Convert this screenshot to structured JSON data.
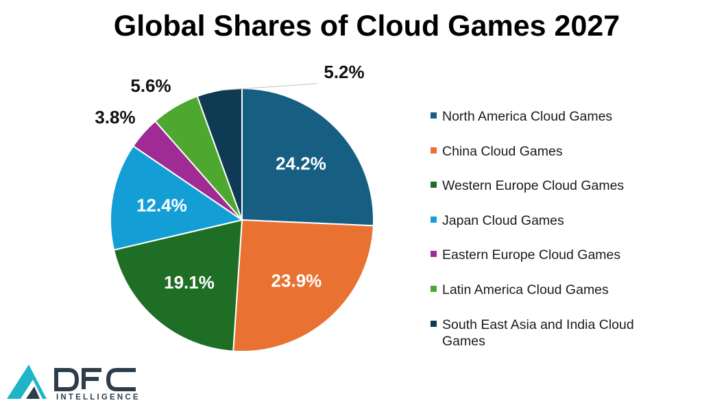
{
  "chart_data": {
    "type": "pie",
    "title": "Global Shares of Cloud Games 2027",
    "slices": [
      {
        "label": "North America Cloud Games",
        "value": 24.2,
        "display": "24.2%",
        "color": "#165e82",
        "label_inside": true
      },
      {
        "label": "China Cloud Games",
        "value": 23.9,
        "display": "23.9%",
        "color": "#e97132",
        "label_inside": true
      },
      {
        "label": "Western Europe Cloud Games",
        "value": 19.1,
        "display": "19.1%",
        "color": "#1e6e26",
        "label_inside": true
      },
      {
        "label": "Japan Cloud Games",
        "value": 12.4,
        "display": "12.4%",
        "color": "#139fd6",
        "label_inside": true
      },
      {
        "label": "Eastern Europe Cloud Games",
        "value": 3.8,
        "display": "3.8%",
        "color": "#a02b94",
        "label_inside": false
      },
      {
        "label": "Latin America Cloud Games",
        "value": 5.6,
        "display": "5.6%",
        "color": "#4ea72e",
        "label_inside": false
      },
      {
        "label": "South East Asia and India Cloud Games",
        "value": 5.2,
        "display": "5.2%",
        "color": "#0f3a54",
        "label_inside": false
      }
    ],
    "legend_position": "right",
    "start_angle": "12 o'clock",
    "direction": "clockwise"
  },
  "logo": {
    "name": "DFC",
    "subtitle": "INTELLIGENCE",
    "accent_color": "#1fb5c8",
    "text_color": "#2d3e4a"
  }
}
